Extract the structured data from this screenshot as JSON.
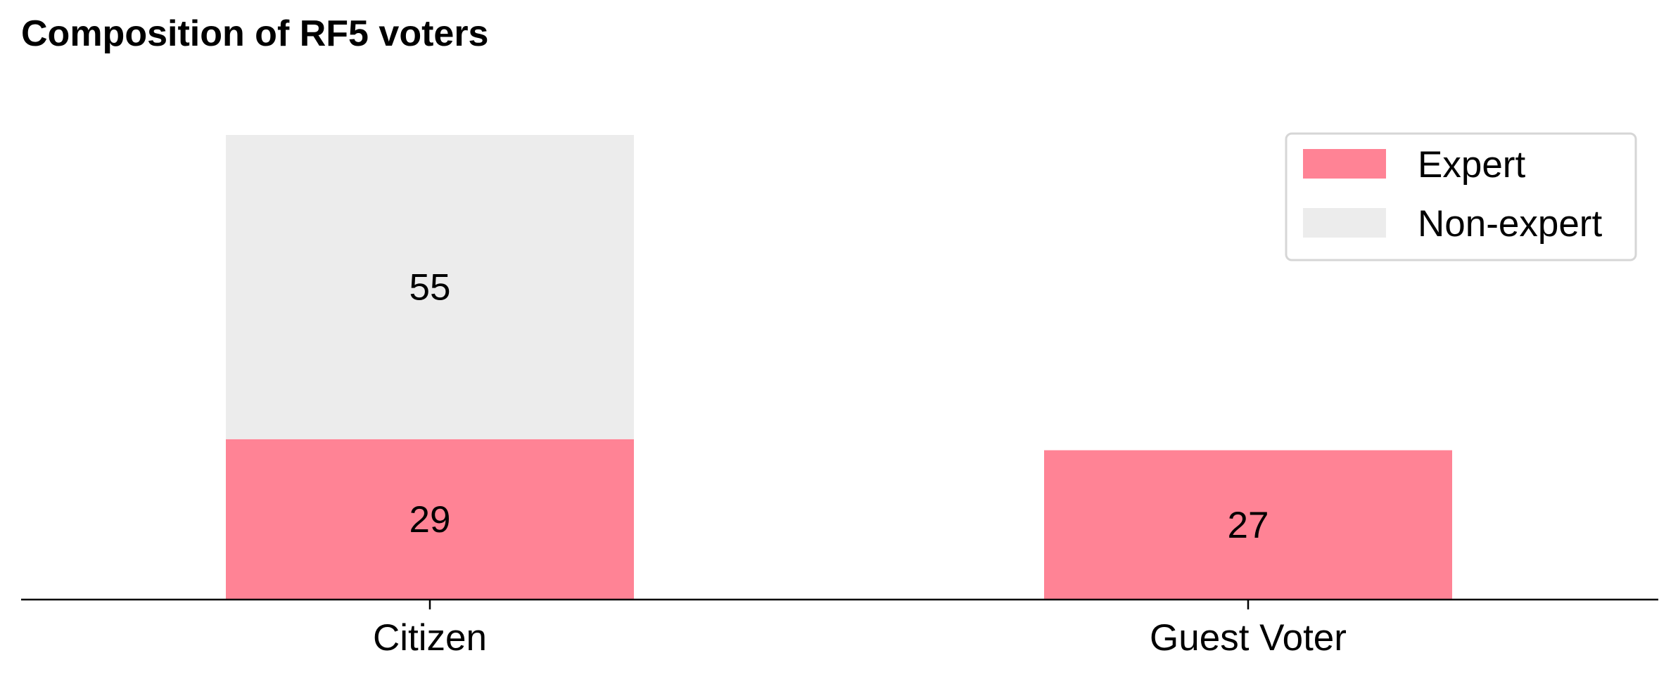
{
  "chart_data": {
    "type": "bar",
    "stacked": true,
    "title": "Composition of RF5 voters",
    "xlabel": "",
    "ylabel": "",
    "categories": [
      "Citizen",
      "Guest Voter"
    ],
    "series": [
      {
        "name": "Expert",
        "values": [
          29,
          27
        ],
        "color": "#ff8395"
      },
      {
        "name": "Non-expert",
        "values": [
          55,
          0
        ],
        "color": "#ececec"
      }
    ],
    "data_labels": [
      {
        "category": "Citizen",
        "series": "Expert",
        "text": "29"
      },
      {
        "category": "Citizen",
        "series": "Non-expert",
        "text": "55"
      },
      {
        "category": "Guest Voter",
        "series": "Expert",
        "text": "27"
      }
    ],
    "ylim": [
      0,
      88
    ],
    "grid": false,
    "legend_position": "top-right",
    "y_axis_visible": false
  }
}
